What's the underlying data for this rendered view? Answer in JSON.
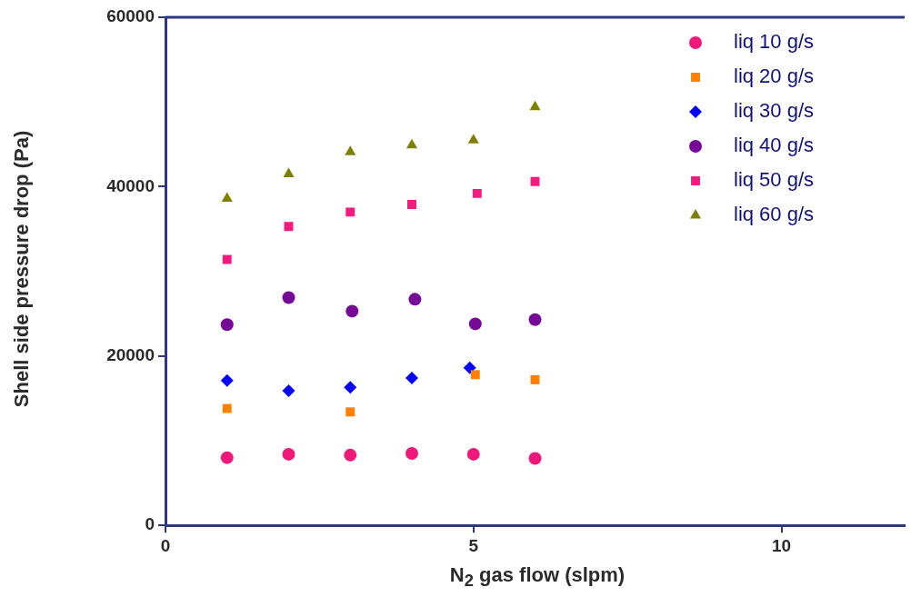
{
  "chart_data": {
    "type": "scatter",
    "xlabel": "N$_{2}$ gas flow (slpm)",
    "ylabel": "Shell side pressure drop (Pa)",
    "xlim": [
      0,
      12
    ],
    "xticks": [
      0,
      5,
      10
    ],
    "ylim": [
      0,
      60000
    ],
    "yticks": [
      0,
      20000,
      40000,
      60000
    ],
    "grid": false,
    "legend": "top right",
    "series": [
      {
        "name": "liq 10 g/s",
        "color": "#f0187a",
        "marker": "circle",
        "x": [
          1,
          2,
          3,
          4,
          5,
          6
        ],
        "values": [
          8000,
          8400,
          8300,
          8500,
          8400,
          7900
        ]
      },
      {
        "name": "liq 20 g/s",
        "color": "#ff8000",
        "marker": "square",
        "x": [
          1,
          3,
          5.03,
          6
        ],
        "values": [
          13800,
          13400,
          17800,
          17200
        ]
      },
      {
        "name": "liq 30 g/s",
        "color": "#0000ff",
        "marker": "diamond",
        "x": [
          1,
          2,
          3,
          4,
          4.94
        ],
        "values": [
          17100,
          15900,
          16300,
          17400,
          18600
        ]
      },
      {
        "name": "liq 40 g/s",
        "color": "#760a96",
        "marker": "circle",
        "x": [
          1,
          2,
          3.03,
          4.05,
          5.03,
          6
        ],
        "values": [
          23700,
          26900,
          25300,
          26700,
          23800,
          24300
        ]
      },
      {
        "name": "liq 50 g/s",
        "color": "#f51a7d",
        "marker": "square",
        "x": [
          1,
          2,
          3,
          4,
          5.06,
          6
        ],
        "values": [
          31400,
          35300,
          37000,
          37900,
          39200,
          40600
        ]
      },
      {
        "name": "liq 60 g/s",
        "color": "#808000",
        "marker": "triangle",
        "x": [
          1,
          2,
          3,
          4,
          5,
          6
        ],
        "values": [
          38600,
          41500,
          44100,
          44900,
          45500,
          49400
        ]
      }
    ]
  }
}
